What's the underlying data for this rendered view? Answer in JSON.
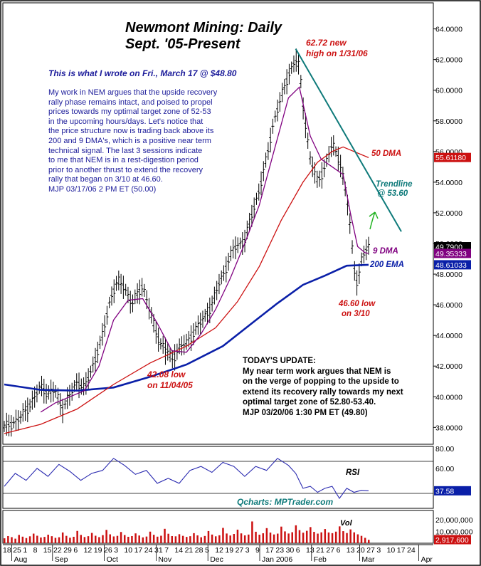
{
  "title_lines": [
    "Newmont Mining: Daily",
    "Sept. '05-Present"
  ],
  "commentary": {
    "heading": "This is what I wrote on Fri., March 17 @ $48.80",
    "lines": [
      "My work in NEM argues that the upside recovery",
      "rally phase remains intact, and poised to propel",
      "prices towards my optimal target zone of 52-53",
      "in the upcoming hours/days. Let's notice that",
      "the price structure now is trading back above its",
      "200 and 9 DMA's, which is a positive near term",
      "technical signal. The last 3 sessions indicate",
      "to me that NEM is in a rest-digestion period",
      "prior to another thrust to extend the recovery",
      "rally that began on 3/10 at 46.60.",
      "MJP  03/17/06  2 PM ET  (50.00)"
    ]
  },
  "update": {
    "lines": [
      "TODAY'S UPDATE:",
      "My near term work argues that NEM is",
      "on the verge of popping to the upside to",
      "extend its recovery rally towards my next",
      "optimal target zone of 52.80-53.40.",
      "MJP  03/20/06  1:30 PM ET  (49.80)"
    ]
  },
  "annotations": {
    "high": [
      "62.72 new",
      "high on 1/31/06"
    ],
    "low_nov": [
      "42.08 low",
      "on 11/04/05"
    ],
    "low_mar": [
      "46.60 low",
      "on 3/10"
    ],
    "dma50": "50 DMA",
    "dma9": "9 DMA",
    "ema200": "200 EMA",
    "trendline": [
      "Trendline",
      "@ 53.60"
    ],
    "rsi": "RSI",
    "vol": "Vol",
    "credit": "Qcharts: MPTrader.com"
  },
  "colors": {
    "price": "#000000",
    "dma9": "#800080",
    "dma50": "#cc1111",
    "ema200": "#0a1fa8",
    "trendline": "#0e7a7a",
    "arrow": "#22b322",
    "rsi": "#2a2ab0",
    "volume": "#cc1111",
    "note_text": "#1b1b9a",
    "annotation_red": "#cc1111"
  },
  "chart_data": {
    "type": "line",
    "price_panel": {
      "y_ticks": [
        "38.0000",
        "40.0000",
        "42.0000",
        "44.0000",
        "46.0000",
        "48.0000",
        "50.0000",
        "52.0000",
        "54.0000",
        "56.0000",
        "58.0000",
        "60.0000",
        "62.0000",
        "64.0000"
      ],
      "ylim": [
        36.9,
        65.7
      ],
      "price_badges": [
        {
          "value": "55.61180",
          "color": "#cc1111",
          "series": "50 DMA"
        },
        {
          "value": "49.7900",
          "color": "#000000",
          "series": "price"
        },
        {
          "value": "49.35333",
          "color": "#800080",
          "series": "9 DMA"
        },
        {
          "value": "48.61033",
          "color": "#0a1fa8",
          "series": "200 EMA"
        }
      ],
      "close_path": [
        [
          0,
          38.0
        ],
        [
          4,
          38.5
        ],
        [
          8,
          39.8
        ],
        [
          10,
          40.7
        ],
        [
          12,
          40.2
        ],
        [
          14,
          40.4
        ],
        [
          16,
          39.2
        ],
        [
          18,
          40.1
        ],
        [
          20,
          41.0
        ],
        [
          22,
          40.5
        ],
        [
          25,
          42.5
        ],
        [
          27,
          44.0
        ],
        [
          29,
          46.3
        ],
        [
          31,
          47.5
        ],
        [
          33,
          47.2
        ],
        [
          35,
          46.0
        ],
        [
          38,
          47.3
        ],
        [
          41,
          44.7
        ],
        [
          43,
          43.4
        ],
        [
          44,
          43.3
        ],
        [
          46,
          42.4
        ],
        [
          48,
          43.2
        ],
        [
          50,
          43.5
        ],
        [
          52,
          44.2
        ],
        [
          55,
          45.2
        ],
        [
          57,
          46.0
        ],
        [
          59,
          47.4
        ],
        [
          61,
          48.5
        ],
        [
          63,
          49.7
        ],
        [
          66,
          50.2
        ],
        [
          68,
          51.9
        ],
        [
          70,
          53.5
        ],
        [
          72,
          55.5
        ],
        [
          74,
          58.0
        ],
        [
          76,
          59.5
        ],
        [
          78,
          61.0
        ],
        [
          80,
          62.0
        ],
        [
          81,
          61.5
        ],
        [
          82,
          59.0
        ],
        [
          84,
          55.5
        ],
        [
          86,
          54.0
        ],
        [
          88,
          55.0
        ],
        [
          90,
          56.5
        ],
        [
          92,
          55.5
        ],
        [
          94,
          53.0
        ],
        [
          95,
          51.0
        ],
        [
          96,
          48.5
        ],
        [
          97,
          47.3
        ],
        [
          98,
          48.8
        ],
        [
          99,
          49.5
        ],
        [
          100,
          49.8
        ]
      ],
      "dma9": [
        [
          10,
          39.0
        ],
        [
          14,
          39.6
        ],
        [
          18,
          40.0
        ],
        [
          22,
          40.4
        ],
        [
          26,
          42.0
        ],
        [
          30,
          45.0
        ],
        [
          34,
          46.3
        ],
        [
          38,
          46.4
        ],
        [
          42,
          44.8
        ],
        [
          46,
          43.0
        ],
        [
          50,
          42.9
        ],
        [
          54,
          44.1
        ],
        [
          58,
          45.7
        ],
        [
          62,
          47.7
        ],
        [
          66,
          50.0
        ],
        [
          70,
          52.5
        ],
        [
          74,
          56.0
        ],
        [
          78,
          59.5
        ],
        [
          81,
          60.2
        ],
        [
          84,
          57.0
        ],
        [
          87,
          55.5
        ],
        [
          90,
          55.0
        ],
        [
          93,
          54.5
        ],
        [
          95,
          52.0
        ],
        [
          97,
          49.8
        ],
        [
          99,
          49.4
        ],
        [
          100,
          49.35
        ]
      ],
      "dma50": [
        [
          0,
          37.6
        ],
        [
          10,
          38.2
        ],
        [
          20,
          39.2
        ],
        [
          30,
          40.8
        ],
        [
          40,
          42.2
        ],
        [
          50,
          43.3
        ],
        [
          58,
          44.5
        ],
        [
          64,
          46.2
        ],
        [
          70,
          48.5
        ],
        [
          76,
          51.5
        ],
        [
          82,
          54.0
        ],
        [
          86,
          55.3
        ],
        [
          90,
          56.0
        ],
        [
          93,
          56.3
        ],
        [
          96,
          56.0
        ],
        [
          100,
          55.6
        ]
      ],
      "ema200": [
        [
          0,
          40.8
        ],
        [
          10,
          40.45
        ],
        [
          20,
          40.4
        ],
        [
          30,
          40.6
        ],
        [
          40,
          41.3
        ],
        [
          50,
          42.1
        ],
        [
          60,
          43.3
        ],
        [
          68,
          44.8
        ],
        [
          75,
          46.1
        ],
        [
          82,
          47.3
        ],
        [
          88,
          47.9
        ],
        [
          94,
          48.55
        ],
        [
          100,
          48.61
        ]
      ],
      "trendline": {
        "from": [
          80,
          62.7
        ],
        "to": [
          100,
          50.5
        ]
      },
      "markers": [
        {
          "label": "62.72 new high on 1/31/06",
          "value": 62.72
        },
        {
          "label": "42.08 low on 11/04/05",
          "value": 42.08
        },
        {
          "label": "46.60 low on 3/10",
          "value": 46.6
        }
      ]
    },
    "rsi_panel": {
      "y_ticks": [
        "80.00",
        "60.00"
      ],
      "ylim": [
        20,
        82
      ],
      "last_value": "37.58",
      "series": [
        [
          0,
          42
        ],
        [
          3,
          55
        ],
        [
          6,
          48
        ],
        [
          9,
          60
        ],
        [
          12,
          52
        ],
        [
          15,
          64
        ],
        [
          18,
          57
        ],
        [
          21,
          48
        ],
        [
          24,
          55
        ],
        [
          27,
          58
        ],
        [
          30,
          70
        ],
        [
          33,
          63
        ],
        [
          36,
          54
        ],
        [
          39,
          58
        ],
        [
          42,
          45
        ],
        [
          45,
          50
        ],
        [
          48,
          45
        ],
        [
          51,
          58
        ],
        [
          54,
          62
        ],
        [
          57,
          56
        ],
        [
          60,
          66
        ],
        [
          63,
          62
        ],
        [
          66,
          52
        ],
        [
          69,
          62
        ],
        [
          72,
          58
        ],
        [
          75,
          70
        ],
        [
          78,
          63
        ],
        [
          80,
          55
        ],
        [
          82,
          40
        ],
        [
          84,
          42
        ],
        [
          86,
          36
        ],
        [
          88,
          40
        ],
        [
          90,
          42
        ],
        [
          92,
          30
        ],
        [
          94,
          40
        ],
        [
          96,
          36
        ],
        [
          98,
          38
        ],
        [
          100,
          37.58
        ]
      ]
    },
    "volume_panel": {
      "y_ticks": [
        "20,000,000",
        "10,000,000"
      ],
      "ylim": [
        0,
        28000000
      ],
      "last_value": "2,917,600",
      "series": [
        [
          0,
          4200000
        ],
        [
          1,
          6100000
        ],
        [
          2,
          5200000
        ],
        [
          3,
          3900000
        ],
        [
          4,
          7100000
        ],
        [
          5,
          5600000
        ],
        [
          6,
          4400000
        ],
        [
          7,
          5900000
        ],
        [
          8,
          8200000
        ],
        [
          9,
          6400000
        ],
        [
          10,
          4900000
        ],
        [
          11,
          5400000
        ],
        [
          12,
          7300000
        ],
        [
          13,
          6000000
        ],
        [
          14,
          4600000
        ],
        [
          15,
          5100000
        ],
        [
          16,
          9200000
        ],
        [
          17,
          6300000
        ],
        [
          18,
          4700000
        ],
        [
          19,
          5500000
        ],
        [
          20,
          10500000
        ],
        [
          21,
          7100000
        ],
        [
          22,
          5300000
        ],
        [
          23,
          6000000
        ],
        [
          24,
          8800000
        ],
        [
          25,
          6400000
        ],
        [
          26,
          5200000
        ],
        [
          27,
          6900000
        ],
        [
          28,
          11400000
        ],
        [
          29,
          7600000
        ],
        [
          30,
          5800000
        ],
        [
          31,
          6300000
        ],
        [
          32,
          9600000
        ],
        [
          33,
          7000000
        ],
        [
          34,
          5500000
        ],
        [
          35,
          6100000
        ],
        [
          36,
          8400000
        ],
        [
          37,
          6600000
        ],
        [
          38,
          5000000
        ],
        [
          39,
          5700000
        ],
        [
          40,
          9900000
        ],
        [
          41,
          7200000
        ],
        [
          42,
          5600000
        ],
        [
          43,
          6400000
        ],
        [
          44,
          12300000
        ],
        [
          45,
          8100000
        ],
        [
          46,
          6100000
        ],
        [
          47,
          5900000
        ],
        [
          48,
          7700000
        ],
        [
          49,
          6300000
        ],
        [
          50,
          5400000
        ],
        [
          51,
          6000000
        ],
        [
          52,
          8600000
        ],
        [
          53,
          6700000
        ],
        [
          54,
          5100000
        ],
        [
          55,
          6200000
        ],
        [
          56,
          10400000
        ],
        [
          57,
          7400000
        ],
        [
          58,
          5900000
        ],
        [
          59,
          6800000
        ],
        [
          60,
          13100000
        ],
        [
          61,
          8300000
        ],
        [
          62,
          6600000
        ],
        [
          63,
          7900000
        ],
        [
          64,
          11600000
        ],
        [
          65,
          8400000
        ],
        [
          66,
          6700000
        ],
        [
          67,
          7400000
        ],
        [
          68,
          18600000
        ],
        [
          69,
          9800000
        ],
        [
          70,
          7300000
        ],
        [
          71,
          8500000
        ],
        [
          72,
          12900000
        ],
        [
          73,
          9100000
        ],
        [
          74,
          7500000
        ],
        [
          75,
          8200000
        ],
        [
          76,
          14200000
        ],
        [
          77,
          10100000
        ],
        [
          78,
          8300000
        ],
        [
          79,
          9400000
        ],
        [
          80,
          15300000
        ],
        [
          81,
          11200000
        ],
        [
          82,
          9000000
        ],
        [
          83,
          10600000
        ],
        [
          84,
          13800000
        ],
        [
          85,
          9700000
        ],
        [
          86,
          8200000
        ],
        [
          87,
          9300000
        ],
        [
          88,
          12100000
        ],
        [
          89,
          9200000
        ],
        [
          90,
          8600000
        ],
        [
          91,
          9900000
        ],
        [
          92,
          14400000
        ],
        [
          93,
          10300000
        ],
        [
          94,
          8700000
        ],
        [
          95,
          11800000
        ],
        [
          96,
          9300000
        ],
        [
          97,
          7600000
        ],
        [
          98,
          6300000
        ],
        [
          99,
          4600000
        ],
        [
          100,
          2917600
        ]
      ]
    },
    "x_axis": {
      "day_labels": [
        "18",
        "25",
        "1",
        "8",
        "15",
        "22",
        "29",
        "6",
        "12",
        "19",
        "26",
        "3",
        "10",
        "17",
        "24",
        "31",
        "7",
        "14",
        "21",
        "28",
        "5",
        "12",
        "19",
        "27",
        "3",
        "9",
        "17",
        "23",
        "30",
        "6",
        "13",
        "21",
        "27",
        "6",
        "13",
        "20",
        "27",
        "3",
        "10",
        "17",
        "24"
      ],
      "month_labels": [
        {
          "label": "Aug",
          "pos": 3
        },
        {
          "label": "Sep",
          "pos": 14
        },
        {
          "label": "Oct",
          "pos": 28
        },
        {
          "label": "Nov",
          "pos": 42
        },
        {
          "label": "Dec",
          "pos": 56
        },
        {
          "label": "Jan 2006",
          "pos": 70
        },
        {
          "label": "Feb",
          "pos": 84
        },
        {
          "label": "Mar",
          "pos": 97
        },
        {
          "label": "Apr",
          "pos": 113
        }
      ]
    }
  }
}
